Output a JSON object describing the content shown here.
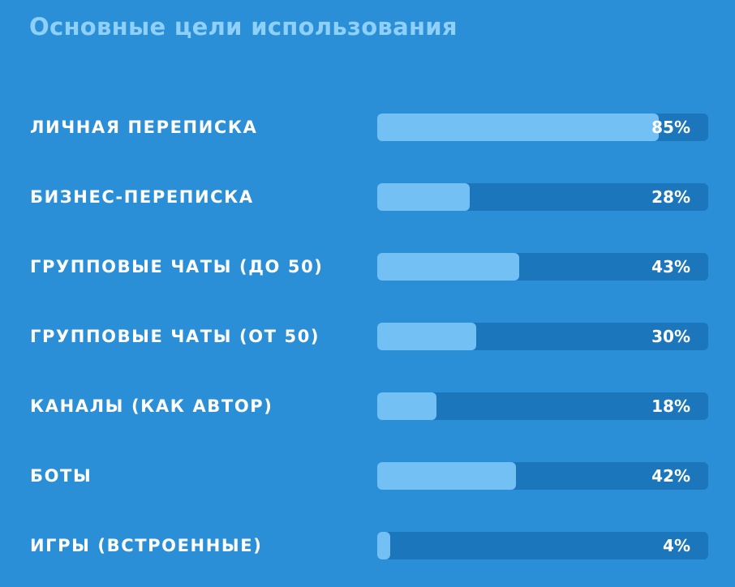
{
  "chart_data": {
    "type": "bar",
    "orientation": "horizontal",
    "title": "Основные цели использования",
    "categories": [
      "ЛИЧНАЯ ПЕРЕПИСКА",
      "БИЗНЕС-ПЕРЕПИСКА",
      "ГРУППОВЫЕ ЧАТЫ (ДО 50)",
      "ГРУППОВЫЕ ЧАТЫ (ОТ 50)",
      "КАНАЛЫ (КАК АВТОР)",
      "БОТЫ",
      "ИГРЫ (ВСТРОЕННЫЕ)"
    ],
    "values": [
      85,
      28,
      43,
      30,
      18,
      42,
      4
    ],
    "value_labels": [
      "85%",
      "28%",
      "43%",
      "30%",
      "18%",
      "42%",
      "4%"
    ],
    "xlim": [
      0,
      100
    ],
    "grid": false,
    "colors": {
      "background": "#2a8fd6",
      "track": "#1c76bc",
      "fill": "#73c0f4",
      "title": "#8fd0f8",
      "text": "#ffffff"
    }
  }
}
